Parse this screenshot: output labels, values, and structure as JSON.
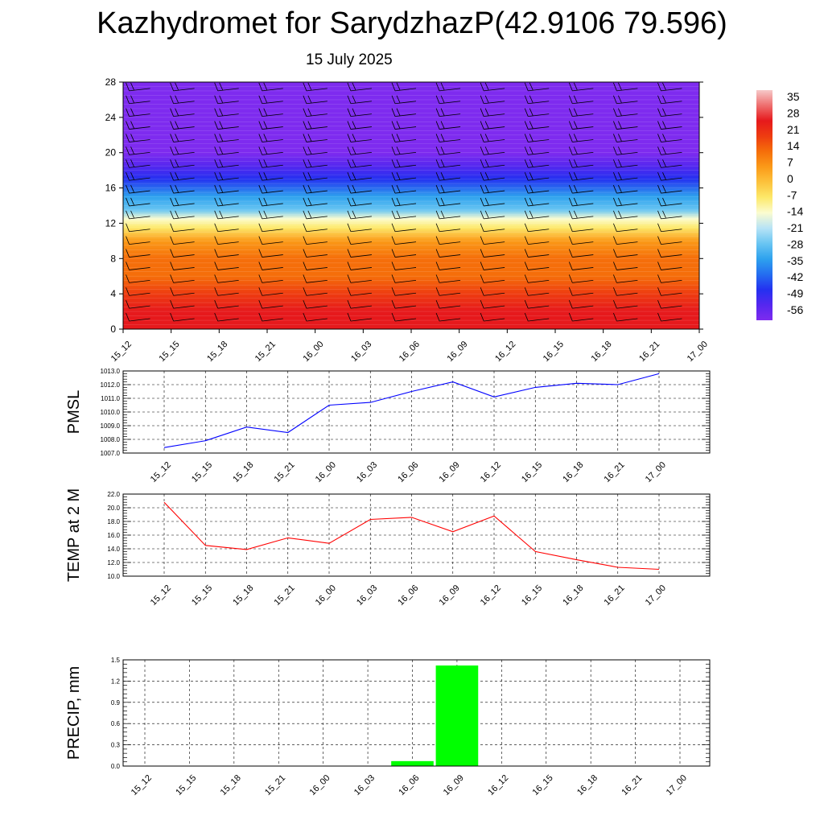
{
  "title": "Kazhydromet for SarydzhazP(42.9106 79.596)",
  "subtitle": "15 July 2025",
  "time_labels": [
    "15_12",
    "15_15",
    "15_18",
    "15_21",
    "16_00",
    "16_03",
    "16_06",
    "16_09",
    "16_12",
    "16_15",
    "16_18",
    "16_21",
    "17_00"
  ],
  "colorbar": {
    "labels": [
      "35",
      "28",
      "21",
      "14",
      "7",
      "0",
      "-7",
      "-14",
      "-21",
      "-28",
      "-35",
      "-42",
      "-49",
      "-56"
    ],
    "colors": [
      "#f6c9c9",
      "#ee6e6e",
      "#e6191c",
      "#ee3c10",
      "#f56e0a",
      "#fb9a18",
      "#fcc23c",
      "#fde96a",
      "#fbfcd0",
      "#b7e3f6",
      "#69c5f2",
      "#2ea2ee",
      "#246ef0",
      "#2431f0",
      "#5527ef",
      "#7e2bef"
    ]
  },
  "chart_data": [
    {
      "type": "heatmap",
      "name": "cross-section",
      "x": [
        "15_12",
        "15_15",
        "15_18",
        "15_21",
        "16_00",
        "16_03",
        "16_06",
        "16_09",
        "16_12",
        "16_15",
        "16_18",
        "16_21",
        "17_00"
      ],
      "ylim": [
        0,
        28
      ],
      "yticks": [
        0,
        4,
        8,
        12,
        16,
        20,
        24,
        28
      ],
      "color_scale": [
        -56,
        35
      ],
      "profile": [
        {
          "y": 0,
          "value": 22
        },
        {
          "y": 2,
          "value": 20
        },
        {
          "y": 4,
          "value": 16
        },
        {
          "y": 6,
          "value": 12
        },
        {
          "y": 8,
          "value": 7
        },
        {
          "y": 10,
          "value": 2
        },
        {
          "y": 11.5,
          "value": -5
        },
        {
          "y": 12.5,
          "value": -14
        },
        {
          "y": 13.5,
          "value": -24
        },
        {
          "y": 15,
          "value": -32
        },
        {
          "y": 17,
          "value": -40
        },
        {
          "y": 18.5,
          "value": -48
        },
        {
          "y": 20,
          "value": -58
        },
        {
          "y": 21,
          "value": -52
        },
        {
          "y": 22,
          "value": -56
        },
        {
          "y": 28,
          "value": -56
        }
      ],
      "wind_barbs": true
    },
    {
      "type": "line",
      "ylabel": "PMSL",
      "x": [
        "15_12",
        "15_15",
        "15_18",
        "15_21",
        "16_00",
        "16_03",
        "16_06",
        "16_09",
        "16_12",
        "16_15",
        "16_18",
        "16_21",
        "17_00"
      ],
      "values": [
        1007.4,
        1007.9,
        1008.9,
        1008.5,
        1010.5,
        1010.7,
        1011.5,
        1012.2,
        1011.1,
        1011.8,
        1012.1,
        1012.0,
        1012.8
      ],
      "ylim": [
        1007.0,
        1013.0
      ],
      "yticks": [
        "1007.0",
        "1008.0",
        "1009.0",
        "1010.0",
        "1011.0",
        "1012.0",
        "1013.0"
      ],
      "color": "#0000ff",
      "grid": true
    },
    {
      "type": "line",
      "ylabel": "TEMP at 2 M",
      "x": [
        "15_12",
        "15_15",
        "15_18",
        "15_21",
        "16_00",
        "16_03",
        "16_06",
        "16_09",
        "16_12",
        "16_15",
        "16_18",
        "16_21",
        "17_00"
      ],
      "values": [
        20.8,
        14.5,
        13.9,
        15.6,
        14.8,
        18.3,
        18.6,
        16.5,
        18.8,
        13.6,
        12.4,
        11.3,
        11.0
      ],
      "ylim": [
        10.0,
        22.0
      ],
      "yticks": [
        "10.0",
        "12.0",
        "14.0",
        "16.0",
        "18.0",
        "20.0",
        "22.0"
      ],
      "color": "#ff0000",
      "grid": true
    },
    {
      "type": "bar",
      "ylabel": "PRECIP, mm",
      "categories": [
        "15_12",
        "15_15",
        "15_18",
        "15_21",
        "16_00",
        "16_03",
        "16_06",
        "16_09",
        "16_12",
        "16_15",
        "16_18",
        "16_21",
        "17_00"
      ],
      "values": [
        0,
        0,
        0,
        0,
        0,
        0,
        0.07,
        1.42,
        0,
        0,
        0,
        0,
        0
      ],
      "ylim": [
        0.0,
        1.5
      ],
      "yticks": [
        "0.0",
        "0.3",
        "0.6",
        "0.9",
        "1.2",
        "1.5"
      ],
      "color": "#00ff00",
      "grid": true
    }
  ]
}
